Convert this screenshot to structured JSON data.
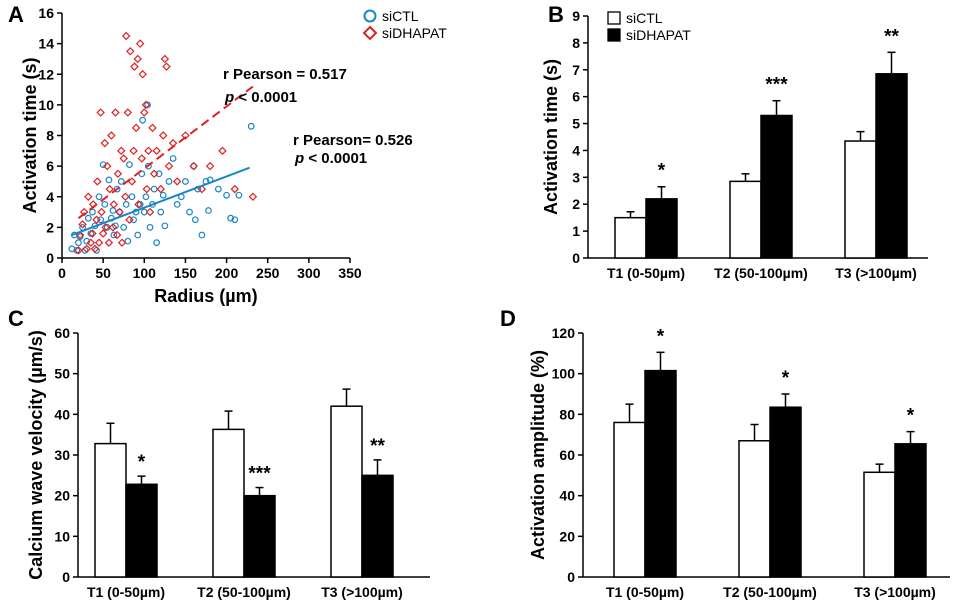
{
  "figure": {
    "chart_data": [
      {
        "type": "scatter",
        "panel": "A",
        "xlabel": "Radius (µm)",
        "ylabel": "Activation time (s)",
        "xlim": [
          0,
          350
        ],
        "ylim": [
          0,
          16
        ],
        "xticks": [
          0,
          50,
          100,
          150,
          200,
          250,
          300,
          350
        ],
        "yticks": [
          0,
          2,
          4,
          6,
          8,
          10,
          12,
          14,
          16
        ],
        "legend": [
          {
            "name": "siCTL",
            "marker": "circle",
            "color": "#1a86c8"
          },
          {
            "name": "siDHAPAT",
            "marker": "diamond",
            "color": "#e02020"
          }
        ],
        "series": [
          {
            "name": "siCTL",
            "color": "#1a86c8",
            "points": [
              [
                12,
                0.6
              ],
              [
                15,
                1.5
              ],
              [
                18,
                0.5
              ],
              [
                20,
                1.0
              ],
              [
                22,
                1.4
              ],
              [
                25,
                2.0
              ],
              [
                28,
                0.5
              ],
              [
                30,
                1.1
              ],
              [
                32,
                2.6
              ],
              [
                35,
                1.6
              ],
              [
                37,
                3.0
              ],
              [
                40,
                2.1
              ],
              [
                42,
                0.5
              ],
              [
                45,
                4.0
              ],
              [
                47,
                2.5
              ],
              [
                50,
                6.1
              ],
              [
                52,
                3.5
              ],
              [
                55,
                2.0
              ],
              [
                57,
                5.1
              ],
              [
                60,
                2.6
              ],
              [
                62,
                3.1
              ],
              [
                63,
                1.5
              ],
              [
                65,
                2.1
              ],
              [
                67,
                4.5
              ],
              [
                70,
                3.0
              ],
              [
                72,
                5.0
              ],
              [
                75,
                2.0
              ],
              [
                78,
                3.5
              ],
              [
                80,
                1.1
              ],
              [
                82,
                6.1
              ],
              [
                85,
                4.0
              ],
              [
                87,
                2.5
              ],
              [
                90,
                3.0
              ],
              [
                92,
                1.5
              ],
              [
                95,
                3.5
              ],
              [
                97,
                5.5
              ],
              [
                98,
                9.0
              ],
              [
                100,
                3.0
              ],
              [
                102,
                4.0
              ],
              [
                104,
                10.0
              ],
              [
                105,
                6.0
              ],
              [
                107,
                2.0
              ],
              [
                110,
                3.5
              ],
              [
                112,
                4.5
              ],
              [
                115,
                1.0
              ],
              [
                118,
                5.5
              ],
              [
                120,
                3.0
              ],
              [
                123,
                4.1
              ],
              [
                125,
                2.1
              ],
              [
                130,
                5.0
              ],
              [
                135,
                6.5
              ],
              [
                140,
                3.5
              ],
              [
                145,
                4.0
              ],
              [
                150,
                5.0
              ],
              [
                155,
                3.0
              ],
              [
                160,
                6.0
              ],
              [
                162,
                2.5
              ],
              [
                165,
                4.5
              ],
              [
                170,
                1.5
              ],
              [
                175,
                5.0
              ],
              [
                178,
                3.1
              ],
              [
                180,
                5.1
              ],
              [
                190,
                4.5
              ],
              [
                200,
                4.1
              ],
              [
                205,
                2.6
              ],
              [
                210,
                2.5
              ],
              [
                215,
                4.1
              ],
              [
                230,
                8.6
              ]
            ]
          },
          {
            "name": "siDHAPAT",
            "color": "#e02020",
            "points": [
              [
                20,
                0.5
              ],
              [
                22,
                1.5
              ],
              [
                25,
                2.2
              ],
              [
                27,
                3.0
              ],
              [
                30,
                0.6
              ],
              [
                32,
                4.0
              ],
              [
                35,
                1.0
              ],
              [
                37,
                1.6
              ],
              [
                38,
                3.5
              ],
              [
                40,
                0.6
              ],
              [
                42,
                2.5
              ],
              [
                43,
                5.0
              ],
              [
                45,
                1.0
              ],
              [
                47,
                9.5
              ],
              [
                48,
                3.0
              ],
              [
                50,
                1.6
              ],
              [
                52,
                7.5
              ],
              [
                53,
                2.0
              ],
              [
                55,
                6.0
              ],
              [
                57,
                1.0
              ],
              [
                58,
                4.5
              ],
              [
                60,
                8.0
              ],
              [
                62,
                2.0
              ],
              [
                63,
                3.5
              ],
              [
                65,
                9.5
              ],
              [
                67,
                1.5
              ],
              [
                68,
                5.5
              ],
              [
                70,
                3.0
              ],
              [
                72,
                7.0
              ],
              [
                73,
                1.0
              ],
              [
                75,
                6.5
              ],
              [
                77,
                4.0
              ],
              [
                78,
                14.5
              ],
              [
                80,
                9.5
              ],
              [
                82,
                2.5
              ],
              [
                83,
                13.5
              ],
              [
                85,
                5.0
              ],
              [
                87,
                7.0
              ],
              [
                88,
                12.5
              ],
              [
                90,
                8.5
              ],
              [
                92,
                13.0
              ],
              [
                93,
                3.5
              ],
              [
                95,
                14.0
              ],
              [
                97,
                6.5
              ],
              [
                98,
                12.0
              ],
              [
                100,
                9.5
              ],
              [
                102,
                10.0
              ],
              [
                103,
                4.5
              ],
              [
                105,
                7.0
              ],
              [
                107,
                3.0
              ],
              [
                110,
                8.5
              ],
              [
                112,
                5.5
              ],
              [
                115,
                7.0
              ],
              [
                120,
                4.5
              ],
              [
                123,
                8.0
              ],
              [
                125,
                13.0
              ],
              [
                127,
                12.5
              ],
              [
                130,
                6.0
              ],
              [
                135,
                7.5
              ],
              [
                140,
                5.0
              ],
              [
                150,
                8.0
              ],
              [
                160,
                6.0
              ],
              [
                170,
                4.5
              ],
              [
                180,
                6.0
              ],
              [
                195,
                7.0
              ],
              [
                210,
                4.5
              ],
              [
                232,
                4.0
              ]
            ]
          }
        ],
        "fits": [
          {
            "series": "siCTL",
            "x": [
              12,
              228
            ],
            "y": [
              1.5,
              5.9
            ],
            "style": "solid"
          },
          {
            "series": "siDHAPAT",
            "x": [
              20,
              232
            ],
            "y": [
              2.6,
              11.2
            ],
            "style": "dashed"
          }
        ],
        "annotations": [
          {
            "line1": "r Pearson = 0.517",
            "p_symbol": "p",
            "p_rest": " < 0.0001"
          },
          {
            "line1": "r Pearson= 0.526",
            "p_symbol": "p",
            "p_rest": " < 0.0001"
          }
        ]
      },
      {
        "type": "bar",
        "panel": "B",
        "ylabel": "Activation time (s)",
        "categories": [
          "T1 (0-50µm)",
          "T2 (50-100µm)",
          "T3 (>100µm)"
        ],
        "ylim": [
          0,
          9
        ],
        "yticks": [
          0,
          1,
          2,
          3,
          4,
          5,
          6,
          7,
          8,
          9
        ],
        "legend": [
          {
            "name": "siCTL",
            "fill": "#ffffff"
          },
          {
            "name": "siDHAPAT",
            "fill": "#000000"
          }
        ],
        "series": [
          {
            "name": "siCTL",
            "values": [
              1.5,
              2.85,
              4.35
            ],
            "errors": [
              0.22,
              0.28,
              0.35
            ]
          },
          {
            "name": "siDHAPAT",
            "values": [
              2.2,
              5.3,
              6.85
            ],
            "errors": [
              0.45,
              0.55,
              0.8
            ]
          }
        ],
        "significance": [
          "*",
          "***",
          "**"
        ]
      },
      {
        "type": "bar",
        "panel": "C",
        "ylabel": "Calcium wave velocity (µm/s)",
        "categories": [
          "T1 (0-50µm)",
          "T2 (50-100µm)",
          "T3 (>100µm)"
        ],
        "ylim": [
          0,
          60
        ],
        "yticks": [
          0,
          10,
          20,
          30,
          40,
          50,
          60
        ],
        "series": [
          {
            "name": "siCTL",
            "values": [
              32.8,
              36.3,
              42.0
            ],
            "errors": [
              5.0,
              4.5,
              4.2
            ]
          },
          {
            "name": "siDHAPAT",
            "values": [
              22.8,
              20.0,
              25.0
            ],
            "errors": [
              2.0,
              2.0,
              3.8
            ]
          }
        ],
        "significance": [
          "*",
          "***",
          "**"
        ]
      },
      {
        "type": "bar",
        "panel": "D",
        "ylabel": "Activation amplitude (%)",
        "categories": [
          "T1 (0-50µm)",
          "T2 (50-100µm)",
          "T3 (>100µm)"
        ],
        "ylim": [
          0,
          120
        ],
        "yticks": [
          0,
          20,
          40,
          60,
          80,
          100,
          120
        ],
        "series": [
          {
            "name": "siCTL",
            "values": [
              76.0,
              67.0,
              51.5
            ],
            "errors": [
              9.0,
              8.0,
              4.0
            ]
          },
          {
            "name": "siDHAPAT",
            "values": [
              101.5,
              83.5,
              65.5
            ],
            "errors": [
              9.0,
              6.5,
              6.0
            ]
          }
        ],
        "significance": [
          "*",
          "*",
          "*"
        ]
      }
    ]
  }
}
